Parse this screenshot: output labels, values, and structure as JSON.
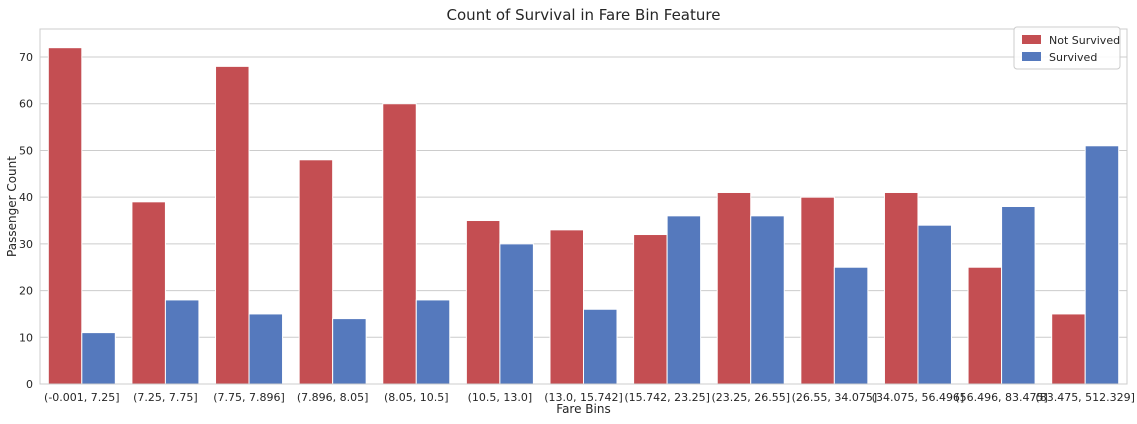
{
  "chart_data": {
    "type": "bar",
    "title": "Count of Survival in Fare Bin Feature",
    "xlabel": "Fare Bins",
    "ylabel": "Passenger Count",
    "ylim": [
      0,
      76
    ],
    "yticks": [
      0,
      10,
      20,
      30,
      40,
      50,
      60,
      70
    ],
    "grid": true,
    "legend_position": "top-right",
    "categories": [
      "(-0.001, 7.25]",
      "(7.25, 7.75]",
      "(7.75, 7.896]",
      "(7.896, 8.05]",
      "(8.05, 10.5]",
      "(10.5, 13.0]",
      "(13.0, 15.742]",
      "(15.742, 23.25]",
      "(23.25, 26.55]",
      "(26.55, 34.075]",
      "(34.075, 56.496]",
      "(56.496, 83.475]",
      "(83.475, 512.329]"
    ],
    "series": [
      {
        "name": "Not Survived",
        "color": "#c44e52",
        "values": [
          72,
          39,
          68,
          48,
          60,
          35,
          33,
          32,
          41,
          40,
          41,
          25,
          15
        ]
      },
      {
        "name": "Survived",
        "color": "#5579bd",
        "values": [
          11,
          18,
          15,
          14,
          18,
          30,
          16,
          36,
          36,
          25,
          34,
          38,
          51
        ]
      }
    ]
  }
}
